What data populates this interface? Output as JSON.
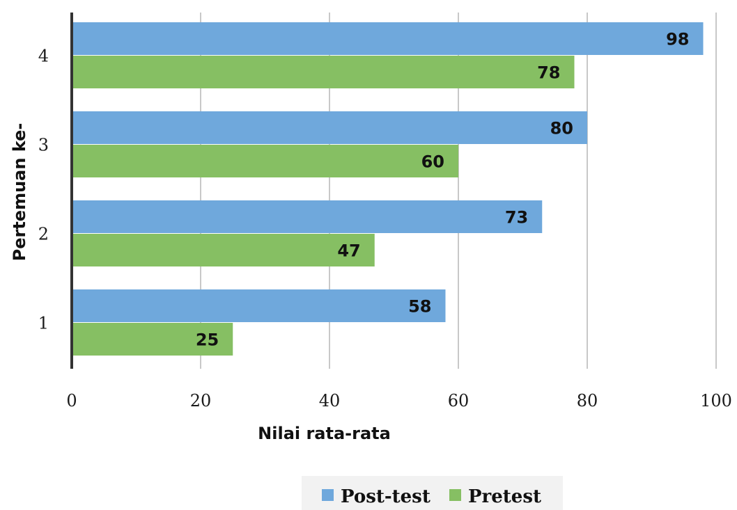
{
  "chart_data": {
    "type": "bar",
    "orientation": "horizontal",
    "categories": [
      "1",
      "2",
      "3",
      "4"
    ],
    "series": [
      {
        "name": "Post-test",
        "values": [
          58,
          73,
          80,
          98
        ],
        "color": "#6fa8dc"
      },
      {
        "name": "Pretest",
        "values": [
          25,
          47,
          60,
          78
        ],
        "color": "#86bf63"
      }
    ],
    "xlabel": "Nilai rata-rata",
    "ylabel": "Pertemuan ke-",
    "xlim": [
      0,
      100
    ],
    "xticks": [
      "0",
      "20",
      "40",
      "60",
      "80",
      "100"
    ],
    "grid": true,
    "legend": "bottom",
    "data_labels": true
  }
}
